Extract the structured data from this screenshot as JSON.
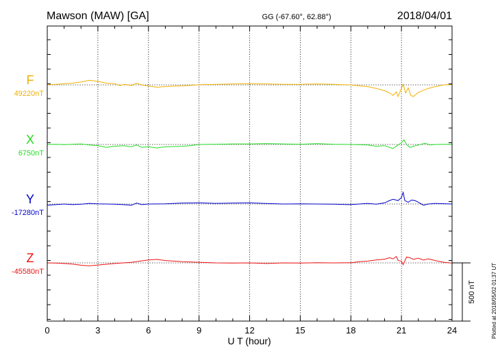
{
  "header": {
    "station": "Mawson (MAW)  [GA]",
    "coords": "GG (-67.60°,  62.88°)",
    "date": "2018/04/01"
  },
  "plotted_note": "Plotted at 2018/05/02 01:37 UT",
  "chart_data": {
    "type": "line",
    "title": "Mawson (MAW)  [GA]",
    "xlabel": "U T (hour)",
    "xlim": [
      0,
      24
    ],
    "xticks": [
      0,
      3,
      6,
      9,
      12,
      15,
      18,
      21,
      24
    ],
    "xtick_labels": [
      "0",
      "3",
      "6",
      "9",
      "12",
      "15",
      "18",
      "21",
      "24"
    ],
    "scale_bar": {
      "value": 500,
      "label": "500 nT"
    },
    "grid": "dotted vertical lines at each 3 h, dotted baseline per component",
    "series": [
      {
        "name": "F",
        "baseline_label": "49220nT",
        "baseline": 49220,
        "color": "#f0b000",
        "points": [
          [
            0,
            49220
          ],
          [
            0.5,
            49225
          ],
          [
            1,
            49230
          ],
          [
            1.5,
            49235
          ],
          [
            2,
            49245
          ],
          [
            2.5,
            49260
          ],
          [
            3,
            49250
          ],
          [
            3.5,
            49235
          ],
          [
            4,
            49230
          ],
          [
            4.3,
            49215
          ],
          [
            4.6,
            49225
          ],
          [
            5,
            49215
          ],
          [
            5.3,
            49235
          ],
          [
            5.6,
            49220
          ],
          [
            6,
            49210
          ],
          [
            6.5,
            49200
          ],
          [
            7,
            49205
          ],
          [
            7.5,
            49210
          ],
          [
            8,
            49212
          ],
          [
            8.5,
            49215
          ],
          [
            9,
            49222
          ],
          [
            10,
            49225
          ],
          [
            11,
            49228
          ],
          [
            12,
            49230
          ],
          [
            13,
            49228
          ],
          [
            14,
            49225
          ],
          [
            15,
            49225
          ],
          [
            16,
            49228
          ],
          [
            17,
            49225
          ],
          [
            17.5,
            49222
          ],
          [
            18,
            49220
          ],
          [
            18.5,
            49212
          ],
          [
            19,
            49205
          ],
          [
            19.5,
            49190
          ],
          [
            20,
            49170
          ],
          [
            20.3,
            49150
          ],
          [
            20.5,
            49130
          ],
          [
            20.7,
            49160
          ],
          [
            20.8,
            49120
          ],
          [
            21,
            49190
          ],
          [
            21.1,
            49225
          ],
          [
            21.25,
            49150
          ],
          [
            21.4,
            49195
          ],
          [
            21.55,
            49130
          ],
          [
            21.7,
            49120
          ],
          [
            22,
            49155
          ],
          [
            22.3,
            49175
          ],
          [
            22.6,
            49190
          ],
          [
            23,
            49205
          ],
          [
            23.5,
            49220
          ],
          [
            24,
            49225
          ]
        ]
      },
      {
        "name": "X",
        "baseline_label": "6750nT",
        "baseline": 6750,
        "color": "#22dd22",
        "points": [
          [
            0,
            6750
          ],
          [
            0.5,
            6752
          ],
          [
            1,
            6748
          ],
          [
            1.5,
            6752
          ],
          [
            2,
            6755
          ],
          [
            2.5,
            6745
          ],
          [
            3,
            6740
          ],
          [
            3.5,
            6725
          ],
          [
            4,
            6735
          ],
          [
            4.5,
            6740
          ],
          [
            5,
            6730
          ],
          [
            5.3,
            6745
          ],
          [
            5.6,
            6725
          ],
          [
            6,
            6730
          ],
          [
            6.5,
            6720
          ],
          [
            7,
            6730
          ],
          [
            8,
            6735
          ],
          [
            8.5,
            6740
          ],
          [
            9,
            6750
          ],
          [
            10,
            6752
          ],
          [
            11,
            6755
          ],
          [
            12,
            6755
          ],
          [
            13,
            6757
          ],
          [
            14,
            6755
          ],
          [
            15,
            6752
          ],
          [
            16,
            6757
          ],
          [
            17,
            6752
          ],
          [
            18,
            6750
          ],
          [
            19,
            6745
          ],
          [
            19.5,
            6735
          ],
          [
            20,
            6740
          ],
          [
            20.3,
            6725
          ],
          [
            20.5,
            6715
          ],
          [
            20.7,
            6735
          ],
          [
            21,
            6765
          ],
          [
            21.15,
            6790
          ],
          [
            21.3,
            6750
          ],
          [
            21.5,
            6725
          ],
          [
            21.7,
            6735
          ],
          [
            22,
            6745
          ],
          [
            22.4,
            6760
          ],
          [
            22.7,
            6745
          ],
          [
            23,
            6750
          ],
          [
            24,
            6752
          ]
        ]
      },
      {
        "name": "Y",
        "baseline_label": "-17280nT",
        "baseline": -17280,
        "color": "#0000cc",
        "points": [
          [
            0,
            -17290
          ],
          [
            0.5,
            -17285
          ],
          [
            1,
            -17280
          ],
          [
            1.5,
            -17285
          ],
          [
            2,
            -17282
          ],
          [
            2.5,
            -17275
          ],
          [
            3,
            -17278
          ],
          [
            4,
            -17282
          ],
          [
            4.5,
            -17285
          ],
          [
            5,
            -17290
          ],
          [
            5.3,
            -17272
          ],
          [
            5.6,
            -17285
          ],
          [
            6,
            -17280
          ],
          [
            7,
            -17278
          ],
          [
            8,
            -17272
          ],
          [
            9,
            -17270
          ],
          [
            10,
            -17275
          ],
          [
            11,
            -17272
          ],
          [
            12,
            -17270
          ],
          [
            13,
            -17276
          ],
          [
            14,
            -17280
          ],
          [
            15,
            -17278
          ],
          [
            16,
            -17280
          ],
          [
            17,
            -17282
          ],
          [
            18,
            -17285
          ],
          [
            18.5,
            -17280
          ],
          [
            19,
            -17275
          ],
          [
            19.5,
            -17282
          ],
          [
            20,
            -17270
          ],
          [
            20.3,
            -17250
          ],
          [
            20.5,
            -17240
          ],
          [
            20.8,
            -17250
          ],
          [
            21,
            -17225
          ],
          [
            21.1,
            -17180
          ],
          [
            21.2,
            -17250
          ],
          [
            21.4,
            -17265
          ],
          [
            21.6,
            -17245
          ],
          [
            21.8,
            -17250
          ],
          [
            22,
            -17265
          ],
          [
            22.3,
            -17290
          ],
          [
            22.6,
            -17280
          ],
          [
            23,
            -17275
          ],
          [
            24,
            -17280
          ]
        ]
      },
      {
        "name": "Z",
        "baseline_label": "-45580nT",
        "baseline": -45580,
        "color": "#ee1111",
        "points": [
          [
            0,
            -45580
          ],
          [
            0.5,
            -45582
          ],
          [
            1,
            -45585
          ],
          [
            1.5,
            -45590
          ],
          [
            2,
            -45600
          ],
          [
            2.5,
            -45605
          ],
          [
            3,
            -45598
          ],
          [
            3.5,
            -45592
          ],
          [
            4,
            -45585
          ],
          [
            4.5,
            -45580
          ],
          [
            5,
            -45575
          ],
          [
            5.5,
            -45565
          ],
          [
            6,
            -45555
          ],
          [
            6.5,
            -45550
          ],
          [
            7,
            -45560
          ],
          [
            7.5,
            -45565
          ],
          [
            8,
            -45570
          ],
          [
            9,
            -45575
          ],
          [
            10,
            -45580
          ],
          [
            11,
            -45582
          ],
          [
            12,
            -45580
          ],
          [
            13,
            -45585
          ],
          [
            14,
            -45580
          ],
          [
            15,
            -45582
          ],
          [
            16,
            -45578
          ],
          [
            17,
            -45580
          ],
          [
            18,
            -45578
          ],
          [
            18.5,
            -45570
          ],
          [
            19,
            -45565
          ],
          [
            19.5,
            -45555
          ],
          [
            20,
            -45548
          ],
          [
            20.3,
            -45535
          ],
          [
            20.5,
            -45545
          ],
          [
            20.7,
            -45525
          ],
          [
            20.8,
            -45560
          ],
          [
            21,
            -45565
          ],
          [
            21.1,
            -45595
          ],
          [
            21.3,
            -45530
          ],
          [
            21.5,
            -45535
          ],
          [
            21.7,
            -45550
          ],
          [
            22,
            -45540
          ],
          [
            22.3,
            -45555
          ],
          [
            22.6,
            -45545
          ],
          [
            23,
            -45560
          ],
          [
            23.5,
            -45575
          ],
          [
            24,
            -45582
          ]
        ]
      }
    ]
  }
}
